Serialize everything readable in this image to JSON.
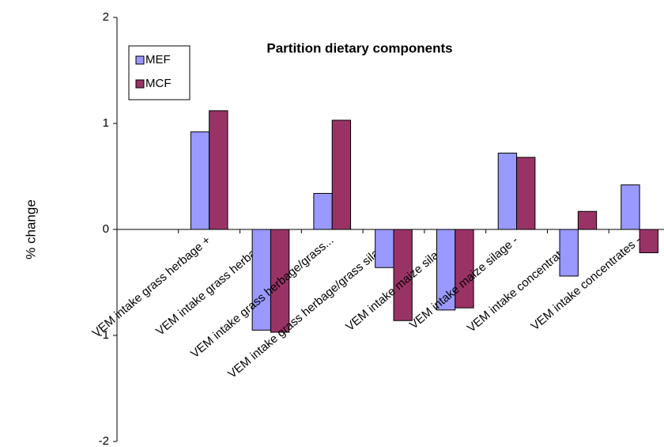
{
  "chart_data": {
    "type": "bar",
    "title": "Partition dietary components",
    "y_label": "% change",
    "categories": [
      null,
      "VEM intake grass herbage +",
      "VEM intake grass herbage -",
      "VEM intake grass herbage/grass...",
      "VEM intake grass herbage/grass silage -",
      "VEM intake maize silage +",
      "VEM intake maize silage -",
      "VEM intake concentrates +",
      "VEM intake concentrates -"
    ],
    "series": [
      {
        "name": "MEF",
        "color": "#9999ff",
        "values": [
          null,
          0.92,
          -0.95,
          0.34,
          -0.36,
          -0.76,
          0.72,
          -0.44,
          0.42
        ]
      },
      {
        "name": "MCF",
        "color": "#993366",
        "values": [
          null,
          1.12,
          -0.97,
          1.03,
          -0.86,
          -0.74,
          0.68,
          0.17,
          -0.22
        ]
      }
    ],
    "ylim": [
      -2,
      2
    ],
    "yticks": [
      -2,
      -1,
      0,
      1,
      2
    ],
    "grid": false,
    "legend": "top-left"
  }
}
